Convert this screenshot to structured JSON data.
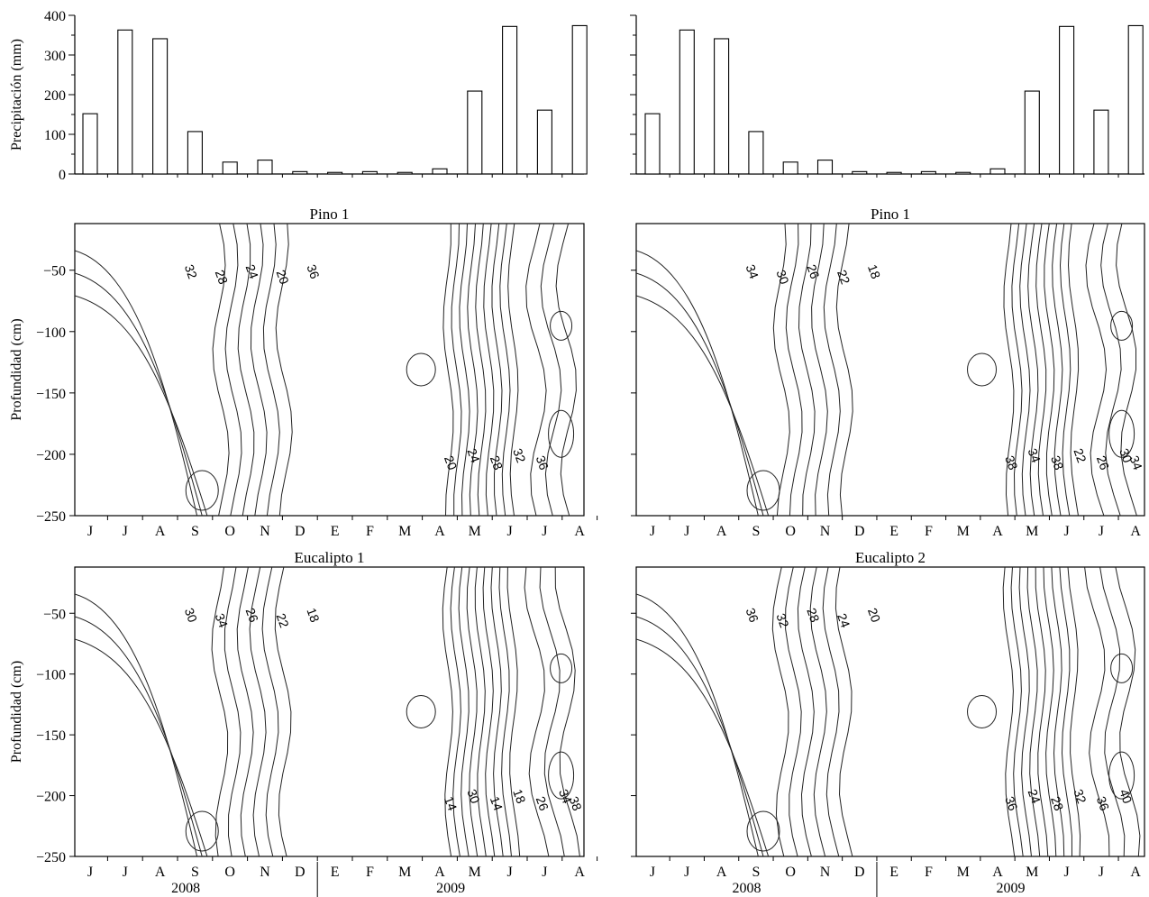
{
  "chart_data": [
    {
      "id": "precip-left",
      "type": "bar",
      "ylabel": "Precipitación (mm)",
      "ylim": [
        0,
        400
      ],
      "yticks": [
        0,
        100,
        200,
        300,
        400
      ],
      "categories": [
        "J",
        "J",
        "A",
        "S",
        "O",
        "N",
        "D",
        "E",
        "F",
        "M",
        "A",
        "M",
        "J",
        "J",
        "A"
      ],
      "values": [
        152,
        363,
        341,
        107,
        30,
        35,
        6,
        4,
        6,
        4,
        13,
        209,
        372,
        161,
        374
      ]
    },
    {
      "id": "precip-right",
      "type": "bar",
      "ylim": [
        0,
        400
      ],
      "categories": [
        "J",
        "J",
        "A",
        "S",
        "O",
        "N",
        "D",
        "E",
        "F",
        "M",
        "A",
        "M",
        "J",
        "J",
        "A"
      ],
      "values": [
        152,
        363,
        341,
        107,
        30,
        35,
        6,
        4,
        6,
        4,
        13,
        209,
        372,
        161,
        374
      ]
    },
    {
      "id": "pino-1-left",
      "type": "contour",
      "title": "Pino 1",
      "ylabel": "Profundidad (cm)",
      "yticks": [
        -50,
        -100,
        -150,
        -200,
        -250
      ],
      "contour_labels": [
        "32",
        "28",
        "24",
        "20",
        "36",
        "20",
        "24",
        "28",
        "32",
        "36"
      ],
      "months": [
        "J",
        "J",
        "A",
        "S",
        "O",
        "N",
        "D",
        "E",
        "F",
        "M",
        "A",
        "M",
        "J",
        "J",
        "A"
      ]
    },
    {
      "id": "pino-1-right",
      "type": "contour",
      "title": "Pino 1",
      "contour_labels": [
        "34",
        "30",
        "26",
        "22",
        "18",
        "38",
        "34",
        "38",
        "22",
        "26",
        "30",
        "34"
      ],
      "months": [
        "J",
        "J",
        "A",
        "S",
        "O",
        "N",
        "D",
        "E",
        "F",
        "M",
        "A",
        "M",
        "J",
        "J",
        "A"
      ]
    },
    {
      "id": "eucalipto-1",
      "type": "contour",
      "title": "Eucalipto 1",
      "ylabel": "Profundidad (cm)",
      "yticks": [
        -50,
        -100,
        -150,
        -200,
        -250
      ],
      "contour_labels": [
        "30",
        "34",
        "26",
        "22",
        "18",
        "14",
        "30",
        "14",
        "18",
        "26",
        "34",
        "38"
      ],
      "months": [
        "J",
        "J",
        "A",
        "S",
        "O",
        "N",
        "D",
        "E",
        "F",
        "M",
        "A",
        "M",
        "J",
        "J",
        "A"
      ],
      "years": [
        "2008",
        "2009"
      ]
    },
    {
      "id": "eucalipto-2",
      "type": "contour",
      "title": "Eucalipto 2",
      "contour_labels": [
        "36",
        "32",
        "28",
        "24",
        "20",
        "36",
        "24",
        "28",
        "32",
        "36",
        "40"
      ],
      "months": [
        "J",
        "J",
        "A",
        "S",
        "O",
        "N",
        "D",
        "E",
        "F",
        "M",
        "A",
        "M",
        "J",
        "J",
        "A"
      ],
      "years": [
        "2008",
        "2009"
      ]
    }
  ]
}
